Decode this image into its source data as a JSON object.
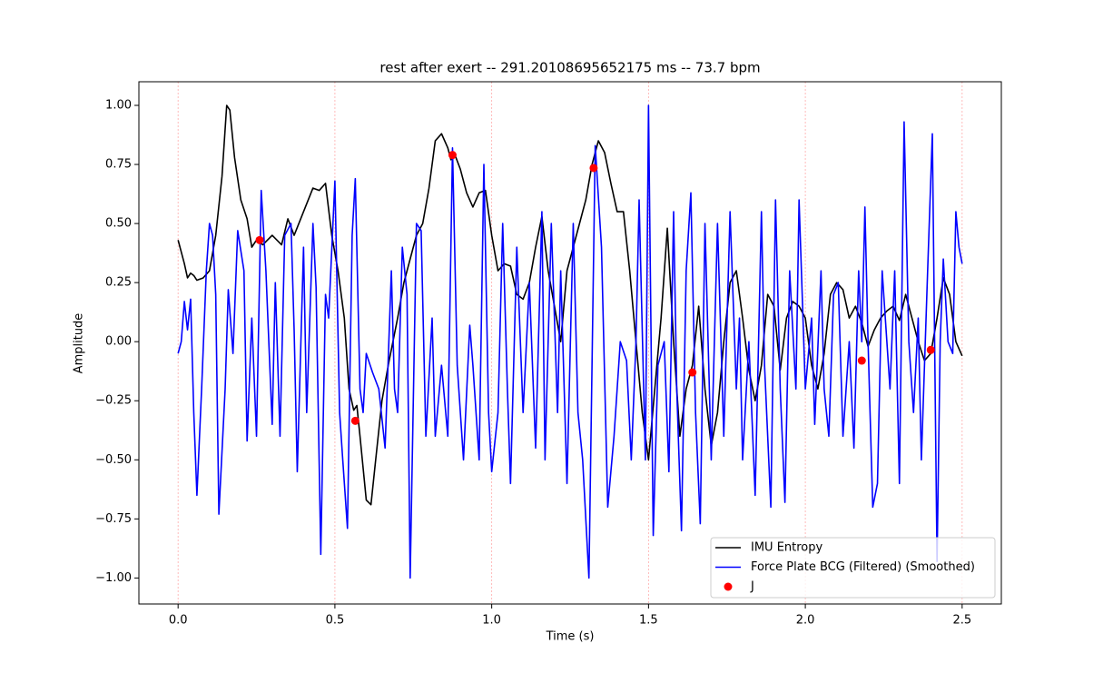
{
  "chart_data": {
    "type": "line",
    "title": "rest after exert  -- 291.20108695652175 ms -- 73.7 bpm",
    "x_label": "Time (s)",
    "y_label": "Amplitude",
    "xlim": [
      -0.125,
      2.625
    ],
    "ylim": [
      -1.11,
      1.1
    ],
    "xticks": [
      {
        "value": 0,
        "label": "0.0"
      },
      0.5,
      {
        "value": 1,
        "label": "1.0"
      },
      1.5,
      {
        "value": 2,
        "label": "2.0"
      },
      2.5
    ],
    "yticks": [
      {
        "value": -1,
        "label": "−1.00"
      },
      {
        "value": -0.75,
        "label": "−0.75"
      },
      {
        "value": -0.5,
        "label": "−0.50"
      },
      {
        "value": -0.25,
        "label": "−0.25"
      },
      {
        "value": 0,
        "label": "0.00"
      },
      {
        "value": 0.25,
        "label": "0.25"
      },
      {
        "value": 0.5,
        "label": "0.50"
      },
      {
        "value": 0.75,
        "label": "0.75"
      },
      {
        "value": 1,
        "label": "1.00"
      }
    ],
    "vlines": [
      0,
      0.5,
      1,
      1.5,
      2,
      2.5
    ],
    "vline_color": "#ffaaaa",
    "legend": "lower right",
    "series": [
      {
        "name": "IMU Entropy",
        "color": "#000000",
        "kind": "line",
        "x": [
          0,
          0.02,
          0.03,
          0.04,
          0.05,
          0.06,
          0.08,
          0.1,
          0.12,
          0.14,
          0.155,
          0.165,
          0.18,
          0.2,
          0.22,
          0.235,
          0.25,
          0.27,
          0.3,
          0.33,
          0.35,
          0.37,
          0.4,
          0.43,
          0.45,
          0.47,
          0.49,
          0.51,
          0.53,
          0.545,
          0.56,
          0.57,
          0.58,
          0.6,
          0.615,
          0.63,
          0.65,
          0.67,
          0.7,
          0.72,
          0.74,
          0.76,
          0.78,
          0.8,
          0.82,
          0.84,
          0.86,
          0.87,
          0.88,
          0.9,
          0.92,
          0.94,
          0.96,
          0.98,
          1.0,
          1.02,
          1.04,
          1.06,
          1.08,
          1.1,
          1.12,
          1.14,
          1.16,
          1.18,
          1.2,
          1.22,
          1.24,
          1.26,
          1.28,
          1.3,
          1.32,
          1.34,
          1.36,
          1.38,
          1.4,
          1.42,
          1.44,
          1.46,
          1.48,
          1.5,
          1.52,
          1.54,
          1.56,
          1.58,
          1.6,
          1.62,
          1.64,
          1.66,
          1.68,
          1.7,
          1.72,
          1.74,
          1.76,
          1.78,
          1.8,
          1.82,
          1.84,
          1.86,
          1.88,
          1.9,
          1.92,
          1.94,
          1.96,
          1.98,
          2.0,
          2.02,
          2.04,
          2.06,
          2.08,
          2.1,
          2.12,
          2.14,
          2.16,
          2.18,
          2.2,
          2.22,
          2.24,
          2.26,
          2.28,
          2.3,
          2.32,
          2.34,
          2.36,
          2.38,
          2.4,
          2.42,
          2.44,
          2.46,
          2.48,
          2.5
        ],
        "values": [
          0.43,
          0.33,
          0.27,
          0.29,
          0.28,
          0.26,
          0.27,
          0.3,
          0.45,
          0.7,
          1.0,
          0.98,
          0.78,
          0.6,
          0.52,
          0.4,
          0.43,
          0.41,
          0.45,
          0.41,
          0.52,
          0.45,
          0.55,
          0.65,
          0.64,
          0.67,
          0.45,
          0.3,
          0.1,
          -0.2,
          -0.29,
          -0.27,
          -0.4,
          -0.67,
          -0.69,
          -0.5,
          -0.25,
          -0.1,
          0.1,
          0.25,
          0.35,
          0.45,
          0.5,
          0.65,
          0.85,
          0.88,
          0.82,
          0.77,
          0.8,
          0.73,
          0.63,
          0.57,
          0.63,
          0.64,
          0.45,
          0.3,
          0.33,
          0.32,
          0.2,
          0.18,
          0.25,
          0.4,
          0.53,
          0.3,
          0.15,
          0.0,
          0.3,
          0.4,
          0.5,
          0.6,
          0.75,
          0.85,
          0.8,
          0.67,
          0.55,
          0.55,
          0.3,
          0.0,
          -0.3,
          -0.5,
          -0.2,
          0.1,
          0.48,
          0.0,
          -0.4,
          -0.2,
          -0.1,
          0.15,
          -0.2,
          -0.44,
          -0.3,
          0.0,
          0.25,
          0.3,
          0.1,
          -0.12,
          -0.25,
          -0.1,
          0.2,
          0.15,
          -0.12,
          0.1,
          0.17,
          0.15,
          0.1,
          -0.1,
          -0.2,
          -0.05,
          0.2,
          0.25,
          0.22,
          0.1,
          0.15,
          0.08,
          -0.02,
          0.05,
          0.1,
          0.13,
          0.15,
          0.09,
          0.2,
          0.1,
          0.0,
          -0.08,
          -0.05,
          0.1,
          0.27,
          0.2,
          0.0,
          -0.06
        ]
      },
      {
        "name": "Force Plate BCG (Filtered) (Smoothed)",
        "color": "#0000ff",
        "kind": "line",
        "x": [
          0,
          0.01,
          0.02,
          0.03,
          0.04,
          0.05,
          0.06,
          0.075,
          0.09,
          0.1,
          0.11,
          0.12,
          0.13,
          0.15,
          0.16,
          0.175,
          0.19,
          0.21,
          0.22,
          0.235,
          0.25,
          0.265,
          0.28,
          0.3,
          0.31,
          0.325,
          0.34,
          0.36,
          0.37,
          0.38,
          0.4,
          0.41,
          0.43,
          0.44,
          0.455,
          0.47,
          0.48,
          0.5,
          0.515,
          0.525,
          0.54,
          0.555,
          0.565,
          0.58,
          0.59,
          0.6,
          0.62,
          0.64,
          0.66,
          0.68,
          0.69,
          0.7,
          0.715,
          0.73,
          0.74,
          0.76,
          0.775,
          0.79,
          0.81,
          0.82,
          0.84,
          0.86,
          0.875,
          0.89,
          0.91,
          0.93,
          0.94,
          0.96,
          0.975,
          0.99,
          1.0,
          1.02,
          1.035,
          1.05,
          1.06,
          1.08,
          1.1,
          1.12,
          1.14,
          1.16,
          1.17,
          1.19,
          1.21,
          1.22,
          1.24,
          1.26,
          1.275,
          1.29,
          1.31,
          1.33,
          1.35,
          1.37,
          1.39,
          1.41,
          1.43,
          1.445,
          1.46,
          1.47,
          1.49,
          1.5,
          1.515,
          1.53,
          1.55,
          1.565,
          1.58,
          1.59,
          1.605,
          1.62,
          1.635,
          1.65,
          1.665,
          1.68,
          1.7,
          1.72,
          1.74,
          1.76,
          1.78,
          1.79,
          1.8,
          1.82,
          1.84,
          1.86,
          1.87,
          1.89,
          1.905,
          1.92,
          1.935,
          1.95,
          1.97,
          1.98,
          2.0,
          2.02,
          2.03,
          2.05,
          2.06,
          2.075,
          2.09,
          2.105,
          2.12,
          2.14,
          2.155,
          2.17,
          2.18,
          2.19,
          2.2,
          2.215,
          2.23,
          2.245,
          2.26,
          2.27,
          2.285,
          2.3,
          2.315,
          2.33,
          2.345,
          2.36,
          2.37,
          2.39,
          2.405,
          2.42,
          2.43,
          2.44,
          2.455,
          2.47,
          2.48,
          2.49,
          2.5
        ],
        "values": [
          -0.05,
          0.0,
          0.17,
          0.05,
          0.18,
          -0.3,
          -0.65,
          -0.2,
          0.3,
          0.5,
          0.45,
          0.2,
          -0.73,
          -0.2,
          0.22,
          -0.05,
          0.47,
          0.3,
          -0.42,
          0.1,
          -0.4,
          0.64,
          0.3,
          -0.35,
          0.25,
          -0.4,
          0.45,
          0.5,
          0.05,
          -0.55,
          0.4,
          -0.3,
          0.5,
          0.23,
          -0.9,
          0.2,
          0.1,
          0.68,
          -0.3,
          -0.5,
          -0.79,
          0.45,
          0.69,
          -0.2,
          -0.3,
          -0.05,
          -0.13,
          -0.2,
          -0.45,
          0.3,
          -0.2,
          -0.3,
          0.4,
          0.2,
          -1.0,
          0.5,
          0.47,
          -0.4,
          0.1,
          -0.4,
          -0.1,
          -0.4,
          0.82,
          -0.1,
          -0.5,
          0.07,
          -0.1,
          -0.5,
          0.75,
          -0.3,
          -0.55,
          -0.3,
          0.5,
          -0.2,
          -0.6,
          0.4,
          -0.3,
          0.25,
          -0.45,
          0.55,
          -0.5,
          0.5,
          -0.3,
          0.3,
          -0.6,
          0.5,
          -0.3,
          -0.5,
          -1.0,
          0.83,
          0.4,
          -0.7,
          -0.4,
          0.0,
          -0.08,
          -0.5,
          0.0,
          0.6,
          -0.5,
          1.0,
          -0.82,
          -0.1,
          0.0,
          -0.55,
          0.55,
          -0.2,
          -0.8,
          0.3,
          0.63,
          -0.3,
          -0.77,
          0.5,
          -0.5,
          0.5,
          -0.4,
          0.55,
          -0.2,
          0.1,
          -0.5,
          0.0,
          -0.65,
          0.55,
          -0.1,
          -0.7,
          0.6,
          -0.2,
          -0.68,
          0.3,
          -0.2,
          0.6,
          -0.2,
          0.1,
          -0.35,
          0.3,
          -0.2,
          -0.4,
          0.2,
          0.25,
          -0.4,
          0.0,
          -0.45,
          0.3,
          0.0,
          0.57,
          0.0,
          -0.7,
          -0.6,
          0.3,
          0.0,
          -0.2,
          0.3,
          -0.6,
          0.93,
          0.0,
          -0.3,
          0.1,
          -0.5,
          0.3,
          0.88,
          -0.93,
          0.0,
          0.35,
          0.0,
          -0.05,
          0.55,
          0.4,
          0.33
        ]
      },
      {
        "name": "J",
        "color": "#ff0000",
        "kind": "scatter",
        "x": [
          0.26,
          0.565,
          0.875,
          1.325,
          1.64,
          2.18,
          2.4
        ],
        "values": [
          0.43,
          -0.335,
          0.79,
          0.735,
          -0.13,
          -0.08,
          -0.035
        ]
      }
    ]
  }
}
